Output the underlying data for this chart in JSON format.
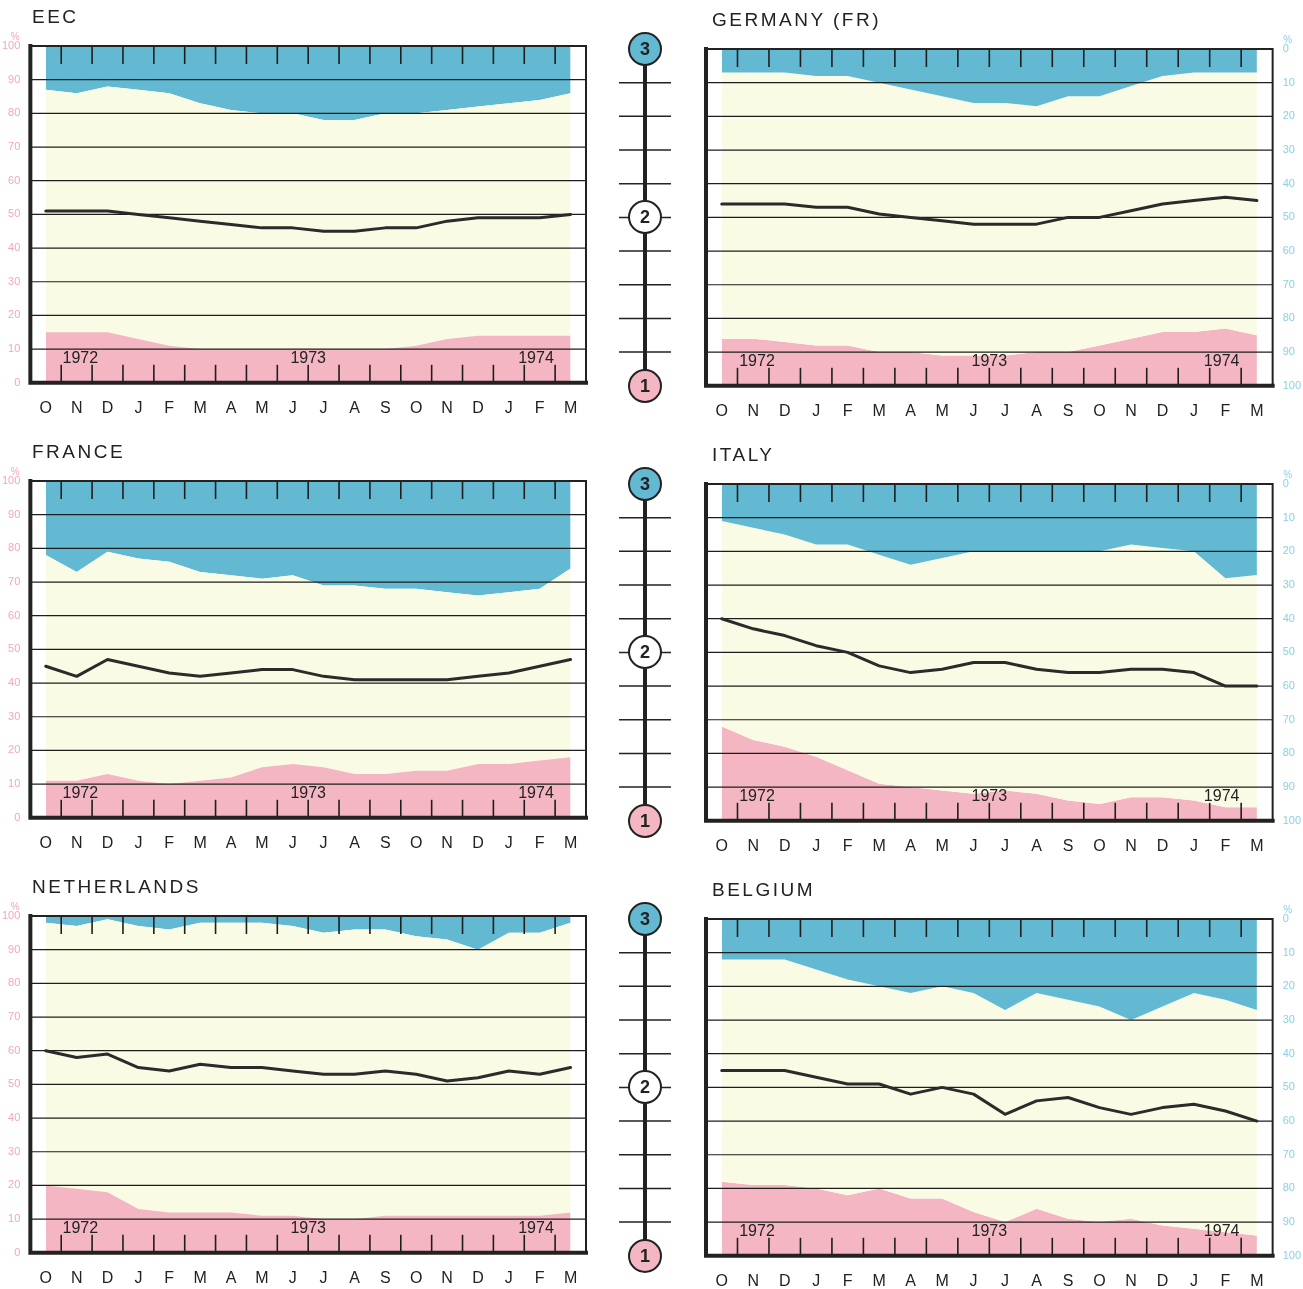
{
  "chart_data": [
    {
      "type": "area",
      "title": "EEC",
      "categories": [
        "O",
        "N",
        "D",
        "J",
        "F",
        "M",
        "A",
        "M",
        "J",
        "J",
        "A",
        "S",
        "O",
        "N",
        "D",
        "J",
        "F",
        "M"
      ],
      "ylim": [
        0,
        100
      ],
      "yticks": [
        0,
        10,
        20,
        30,
        40,
        50,
        60,
        70,
        80,
        90,
        100
      ],
      "ylabel": "%",
      "stacked": true,
      "grid": "y",
      "annotations": [
        "1972",
        "1973",
        "1974"
      ],
      "series": [
        {
          "color": "#f4b6c2",
          "values": [
            15,
            15,
            15,
            13,
            11,
            10,
            10,
            10,
            10,
            10,
            10,
            10,
            11,
            13,
            14,
            14,
            14,
            14
          ]
        },
        {
          "color": "#fafbe4",
          "values": [
            72,
            71,
            73,
            74,
            75,
            73,
            71,
            70,
            70,
            68,
            68,
            70,
            69,
            68,
            68,
            69,
            70,
            72
          ]
        },
        {
          "color": "#62b9d1",
          "values": [
            13,
            14,
            12,
            13,
            14,
            17,
            19,
            20,
            20,
            22,
            22,
            20,
            20,
            19,
            18,
            17,
            16,
            14
          ]
        },
        {
          "type": "line",
          "color": "#2b2b2b",
          "values": [
            51,
            51,
            51,
            50,
            49,
            48,
            47,
            46,
            46,
            45,
            45,
            46,
            46,
            48,
            49,
            49,
            49,
            50
          ]
        }
      ]
    },
    {
      "type": "area",
      "title": "GERMANY (FR)",
      "categories": [
        "O",
        "N",
        "D",
        "J",
        "F",
        "M",
        "A",
        "M",
        "J",
        "J",
        "A",
        "S",
        "O",
        "N",
        "D",
        "J",
        "F",
        "M"
      ],
      "y2lim": [
        100,
        0
      ],
      "y2ticks": [
        0,
        10,
        20,
        30,
        40,
        50,
        60,
        70,
        80,
        90,
        100
      ],
      "y2label": "%",
      "stacked": true,
      "grid": "y",
      "legend": "left",
      "annotations": [
        "1972",
        "1973",
        "1974"
      ],
      "series": [
        {
          "name": "3",
          "axis": "y2",
          "color": "#62b9d1",
          "values": [
            7,
            7,
            7,
            8,
            8,
            10,
            12,
            14,
            16,
            16,
            17,
            14,
            14,
            11,
            8,
            7,
            7,
            7
          ]
        },
        {
          "type": "line",
          "name": "2",
          "axis": "y2",
          "color": "#2b2b2b",
          "values": [
            46,
            46,
            46,
            47,
            47,
            49,
            50,
            51,
            52,
            52,
            52,
            50,
            50,
            48,
            46,
            45,
            44,
            45
          ]
        },
        {
          "axis": "y2",
          "color": "#fafbe4",
          "values": [
            79,
            79,
            80,
            80,
            80,
            80,
            78,
            77,
            75,
            75,
            73,
            76,
            74,
            75,
            76,
            77,
            76,
            78
          ]
        },
        {
          "name": "1",
          "axis": "y2",
          "color": "#f4b6c2",
          "values": [
            14,
            14,
            13,
            12,
            12,
            10,
            10,
            9,
            9,
            9,
            10,
            10,
            12,
            14,
            16,
            16,
            17,
            15
          ]
        }
      ]
    },
    {
      "type": "area",
      "title": "FRANCE",
      "categories": [
        "O",
        "N",
        "D",
        "J",
        "F",
        "M",
        "A",
        "M",
        "J",
        "J",
        "A",
        "S",
        "O",
        "N",
        "D",
        "J",
        "F",
        "M"
      ],
      "ylim": [
        0,
        100
      ],
      "yticks": [
        0,
        10,
        20,
        30,
        40,
        50,
        60,
        70,
        80,
        90,
        100
      ],
      "ylabel": "%",
      "stacked": true,
      "grid": "y",
      "annotations": [
        "1972",
        "1973",
        "1974"
      ],
      "series": [
        {
          "color": "#f4b6c2",
          "values": [
            11,
            11,
            13,
            11,
            10,
            11,
            12,
            15,
            16,
            15,
            13,
            13,
            14,
            14,
            16,
            16,
            17,
            18
          ]
        },
        {
          "color": "#fafbe4",
          "values": [
            67,
            62,
            66,
            66,
            66,
            62,
            60,
            56,
            56,
            54,
            56,
            55,
            54,
            53,
            50,
            51,
            51,
            56
          ]
        },
        {
          "color": "#62b9d1",
          "values": [
            22,
            27,
            21,
            23,
            24,
            27,
            28,
            29,
            28,
            31,
            31,
            32,
            32,
            33,
            34,
            33,
            32,
            26
          ]
        },
        {
          "type": "line",
          "color": "#2b2b2b",
          "values": [
            45,
            42,
            47,
            45,
            43,
            42,
            43,
            44,
            44,
            42,
            41,
            41,
            41,
            41,
            42,
            43,
            45,
            47
          ]
        }
      ]
    },
    {
      "type": "area",
      "title": "ITALY",
      "categories": [
        "O",
        "N",
        "D",
        "J",
        "F",
        "M",
        "A",
        "M",
        "J",
        "J",
        "A",
        "S",
        "O",
        "N",
        "D",
        "J",
        "F",
        "M"
      ],
      "y2lim": [
        100,
        0
      ],
      "y2ticks": [
        0,
        10,
        20,
        30,
        40,
        50,
        60,
        70,
        80,
        90,
        100
      ],
      "y2label": "%",
      "stacked": true,
      "grid": "y",
      "legend": "left",
      "annotations": [
        "1972",
        "1973",
        "1974"
      ],
      "series": [
        {
          "name": "3",
          "axis": "y2",
          "color": "#62b9d1",
          "values": [
            11,
            13,
            15,
            18,
            18,
            21,
            24,
            22,
            20,
            20,
            20,
            20,
            20,
            18,
            19,
            20,
            28,
            27
          ]
        },
        {
          "type": "line",
          "name": "2",
          "axis": "y2",
          "color": "#2b2b2b",
          "values": [
            40,
            43,
            45,
            48,
            50,
            54,
            56,
            55,
            53,
            53,
            55,
            56,
            56,
            55,
            55,
            56,
            60,
            60
          ]
        },
        {
          "axis": "y2",
          "color": "#fafbe4",
          "values": [
            61,
            63,
            63,
            63,
            67,
            68,
            66,
            69,
            72,
            71,
            72,
            74,
            75,
            75,
            74,
            74,
            68,
            69
          ]
        },
        {
          "name": "1",
          "axis": "y2",
          "color": "#f4b6c2",
          "values": [
            28,
            24,
            22,
            19,
            15,
            11,
            10,
            9,
            8,
            9,
            8,
            6,
            5,
            7,
            7,
            6,
            4,
            4
          ]
        }
      ]
    },
    {
      "type": "area",
      "title": "NETHERLANDS",
      "categories": [
        "O",
        "N",
        "D",
        "J",
        "F",
        "M",
        "A",
        "M",
        "J",
        "J",
        "A",
        "S",
        "O",
        "N",
        "D",
        "J",
        "F",
        "M"
      ],
      "ylim": [
        0,
        100
      ],
      "yticks": [
        0,
        10,
        20,
        30,
        40,
        50,
        60,
        70,
        80,
        90,
        100
      ],
      "ylabel": "%",
      "stacked": true,
      "grid": "y",
      "annotations": [
        "1972",
        "1973",
        "1974"
      ],
      "series": [
        {
          "color": "#f4b6c2",
          "values": [
            20,
            19,
            18,
            13,
            12,
            12,
            12,
            11,
            11,
            10,
            10,
            11,
            11,
            11,
            11,
            11,
            11,
            12
          ]
        },
        {
          "color": "#fafbe4",
          "values": [
            78,
            78,
            81,
            84,
            84,
            86,
            86,
            87,
            86,
            85,
            86,
            85,
            83,
            82,
            79,
            84,
            84,
            86
          ]
        },
        {
          "color": "#62b9d1",
          "values": [
            2,
            3,
            1,
            3,
            4,
            2,
            2,
            2,
            3,
            5,
            4,
            4,
            6,
            7,
            10,
            5,
            5,
            2
          ]
        },
        {
          "type": "line",
          "color": "#2b2b2b",
          "values": [
            60,
            58,
            59,
            55,
            54,
            56,
            55,
            55,
            54,
            53,
            53,
            54,
            53,
            51,
            52,
            54,
            53,
            55
          ]
        }
      ]
    },
    {
      "type": "area",
      "title": "BELGIUM",
      "categories": [
        "O",
        "N",
        "D",
        "J",
        "F",
        "M",
        "A",
        "M",
        "J",
        "J",
        "A",
        "S",
        "O",
        "N",
        "D",
        "J",
        "F",
        "M"
      ],
      "y2lim": [
        100,
        0
      ],
      "y2ticks": [
        0,
        10,
        20,
        30,
        40,
        50,
        60,
        70,
        80,
        90,
        100
      ],
      "y2label": "%",
      "stacked": true,
      "grid": "y",
      "legend": "left",
      "annotations": [
        "1972",
        "1973",
        "1974"
      ],
      "series": [
        {
          "name": "3",
          "axis": "y2",
          "color": "#62b9d1",
          "values": [
            12,
            12,
            12,
            15,
            18,
            20,
            22,
            20,
            22,
            27,
            22,
            24,
            26,
            30,
            26,
            22,
            24,
            27
          ]
        },
        {
          "type": "line",
          "name": "2",
          "axis": "y2",
          "color": "#2b2b2b",
          "values": [
            45,
            45,
            45,
            47,
            49,
            49,
            52,
            50,
            52,
            58,
            54,
            53,
            56,
            58,
            56,
            55,
            57,
            60
          ]
        },
        {
          "axis": "y2",
          "color": "#fafbe4",
          "values": [
            66,
            67,
            67,
            65,
            64,
            60,
            61,
            63,
            65,
            63,
            64,
            65,
            64,
            59,
            65,
            70,
            69,
            67
          ]
        },
        {
          "name": "1",
          "axis": "y2",
          "color": "#f4b6c2",
          "values": [
            22,
            21,
            21,
            20,
            18,
            20,
            17,
            17,
            13,
            10,
            14,
            11,
            10,
            11,
            9,
            8,
            7,
            6
          ]
        }
      ]
    }
  ]
}
